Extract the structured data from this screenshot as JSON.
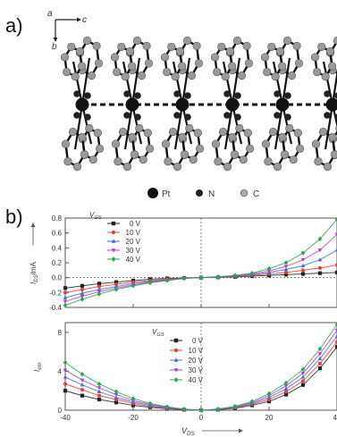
{
  "panel_a": {
    "label": "a)",
    "axes": {
      "a": "a",
      "b": "b",
      "c": "c"
    },
    "legend": [
      {
        "symbol": "Pt",
        "label": "Pt"
      },
      {
        "symbol": "N",
        "label": "N"
      },
      {
        "symbol": "C",
        "label": "C"
      }
    ],
    "molecule_count": 6,
    "colors": {
      "pt": "#111111",
      "n": "#222222",
      "c": "#a9a9a9",
      "bond": "#111111",
      "chain": "#111111"
    }
  },
  "panel_b": {
    "label": "b)"
  },
  "chart_data": [
    {
      "type": "line",
      "ylabel": "I_DS/mA",
      "ylabel_main": "I",
      "ylabel_sub": "DS",
      "ylabel_unit": "/mA",
      "legend_title_main": "V",
      "legend_title_sub": "GS",
      "xlim": [
        -40,
        40
      ],
      "ylim": [
        -0.4,
        0.8
      ],
      "yticks": [
        "0.8",
        "0.6",
        "0.4",
        "0.2",
        "0.0",
        "-0.2",
        "-0.4"
      ],
      "ytick_values": [
        0.8,
        0.6,
        0.4,
        0.2,
        0.0,
        -0.2,
        -0.4
      ],
      "legend_position": "top-left",
      "x": [
        -40,
        -35,
        -30,
        -25,
        -20,
        -15,
        -10,
        -5,
        0,
        5,
        10,
        15,
        20,
        25,
        30,
        35,
        40
      ],
      "series": [
        {
          "name": "0 V",
          "color": "#222222",
          "marker": "square",
          "values": [
            -0.14,
            -0.11,
            -0.08,
            -0.06,
            -0.04,
            -0.02,
            -0.01,
            -0.004,
            0.0,
            0.004,
            0.01,
            0.02,
            0.03,
            0.04,
            0.05,
            0.06,
            0.07
          ]
        },
        {
          "name": "10 V",
          "color": "#e8403a",
          "marker": "circle",
          "values": [
            -0.2,
            -0.16,
            -0.12,
            -0.09,
            -0.06,
            -0.04,
            -0.02,
            -0.006,
            0.0,
            0.006,
            0.015,
            0.03,
            0.05,
            0.07,
            0.1,
            0.13,
            0.17
          ]
        },
        {
          "name": "20 V",
          "color": "#3a6fd8",
          "marker": "triangle",
          "values": [
            -0.27,
            -0.21,
            -0.16,
            -0.12,
            -0.08,
            -0.05,
            -0.03,
            -0.008,
            0.0,
            0.008,
            0.02,
            0.04,
            0.07,
            0.11,
            0.16,
            0.24,
            0.37
          ]
        },
        {
          "name": "30 V",
          "color": "#b040d0",
          "marker": "tri-down",
          "values": [
            -0.32,
            -0.25,
            -0.19,
            -0.14,
            -0.1,
            -0.06,
            -0.035,
            -0.01,
            0.0,
            0.01,
            0.025,
            0.05,
            0.09,
            0.15,
            0.24,
            0.37,
            0.58
          ]
        },
        {
          "name": "40 V",
          "color": "#2aa84a",
          "marker": "diamond",
          "values": [
            -0.37,
            -0.29,
            -0.22,
            -0.16,
            -0.11,
            -0.07,
            -0.04,
            -0.012,
            0.0,
            0.012,
            0.03,
            0.06,
            0.12,
            0.2,
            0.33,
            0.52,
            0.78
          ]
        }
      ]
    },
    {
      "type": "line",
      "ylabel_main": "I",
      "ylabel_sub": "em",
      "legend_title_main": "V",
      "legend_title_sub": "GS",
      "xlabel_main": "V",
      "xlabel_sub": "DS",
      "xlim": [
        -40,
        40
      ],
      "ylim": [
        0,
        9
      ],
      "xticks": [
        "-40",
        "-20",
        "0",
        "20",
        "40"
      ],
      "xtick_values": [
        -40,
        -20,
        0,
        20,
        40
      ],
      "yticks": [
        "8",
        "4",
        "0"
      ],
      "ytick_values": [
        8,
        4,
        0
      ],
      "legend_position": "top-center",
      "x": [
        -40,
        -35,
        -30,
        -25,
        -20,
        -15,
        -10,
        -5,
        0,
        5,
        10,
        15,
        20,
        25,
        30,
        35,
        40
      ],
      "series": [
        {
          "name": "0 V",
          "color": "#222222",
          "marker": "square",
          "values": [
            2.0,
            1.5,
            1.1,
            0.8,
            0.5,
            0.3,
            0.15,
            0.05,
            0.0,
            0.05,
            0.2,
            0.5,
            0.9,
            1.6,
            2.6,
            4.3,
            6.5
          ]
        },
        {
          "name": "10 V",
          "color": "#e8403a",
          "marker": "circle",
          "values": [
            2.7,
            2.1,
            1.5,
            1.1,
            0.7,
            0.4,
            0.2,
            0.07,
            0.0,
            0.07,
            0.25,
            0.6,
            1.1,
            1.9,
            3.0,
            4.8,
            7.0
          ]
        },
        {
          "name": "20 V",
          "color": "#3a6fd8",
          "marker": "triangle",
          "values": [
            3.4,
            2.6,
            1.9,
            1.3,
            0.85,
            0.5,
            0.25,
            0.08,
            0.0,
            0.08,
            0.3,
            0.7,
            1.3,
            2.2,
            3.4,
            5.3,
            7.6
          ]
        },
        {
          "name": "30 V",
          "color": "#b040d0",
          "marker": "tri-down",
          "values": [
            4.1,
            3.1,
            2.3,
            1.6,
            1.0,
            0.6,
            0.3,
            0.1,
            0.0,
            0.1,
            0.35,
            0.8,
            1.5,
            2.5,
            3.8,
            5.8,
            8.2
          ]
        },
        {
          "name": "40 V",
          "color": "#2aa84a",
          "marker": "diamond",
          "values": [
            4.9,
            3.7,
            2.7,
            1.9,
            1.2,
            0.7,
            0.35,
            0.12,
            0.0,
            0.12,
            0.4,
            0.9,
            1.7,
            2.8,
            4.2,
            6.3,
            8.8
          ]
        }
      ]
    }
  ]
}
